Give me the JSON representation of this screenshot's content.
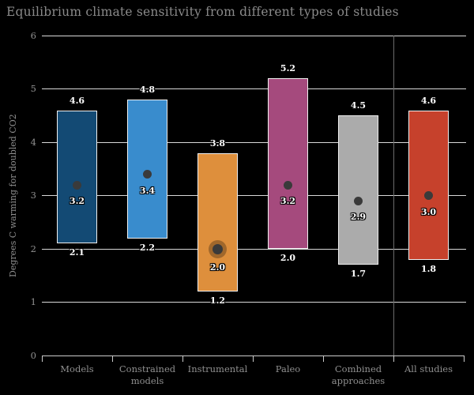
{
  "title": "Equilibrium climate sensitivity from different types of studies",
  "chart_data": {
    "type": "bar",
    "subtype": "floating-range-bars-with-best-estimate-dots",
    "title": "Equilibrium climate sensitivity from different types of studies",
    "xlabel": "",
    "ylabel": "Degrees C warming for doubled CO2",
    "ylim": [
      0,
      6
    ],
    "yticks": [
      "0",
      "1",
      "2",
      "3",
      "4",
      "5",
      "6"
    ],
    "grid": true,
    "background_color": "#000000",
    "gridline_color": "#d9d9d9",
    "axis_color": "#cccccc",
    "text_color": "#8f8f8f",
    "dot_color": "#3a3a3a",
    "categories": [
      "Models",
      "Constrained models",
      "Instrumental",
      "Paleo",
      "Combined approaches",
      "All studies"
    ],
    "category_label_lines": [
      [
        "Models"
      ],
      [
        "Constrained",
        "models"
      ],
      [
        "Instrumental"
      ],
      [
        "Paleo"
      ],
      [
        "Combined",
        "approaches"
      ],
      [
        "All studies"
      ]
    ],
    "series": [
      {
        "category": "Models",
        "min": 2.1,
        "max": 4.6,
        "best": 3.2,
        "color": "#134a74",
        "ringed_dot": false
      },
      {
        "category": "Constrained models",
        "min": 2.2,
        "max": 4.8,
        "best": 3.4,
        "color": "#398ccd",
        "ringed_dot": false
      },
      {
        "category": "Instrumental",
        "min": 1.2,
        "max": 3.8,
        "best": 2.0,
        "color": "#de8f3c",
        "ringed_dot": true
      },
      {
        "category": "Paleo",
        "min": 2.0,
        "max": 5.2,
        "best": 3.2,
        "color": "#a54a7d",
        "ringed_dot": false
      },
      {
        "category": "Combined approaches",
        "min": 1.7,
        "max": 4.5,
        "best": 2.9,
        "color": "#ababab",
        "ringed_dot": false
      },
      {
        "category": "All studies",
        "min": 1.8,
        "max": 4.6,
        "best": 3.0,
        "color": "#c6412c",
        "ringed_dot": false
      }
    ],
    "separator_after_category": "Combined approaches"
  }
}
